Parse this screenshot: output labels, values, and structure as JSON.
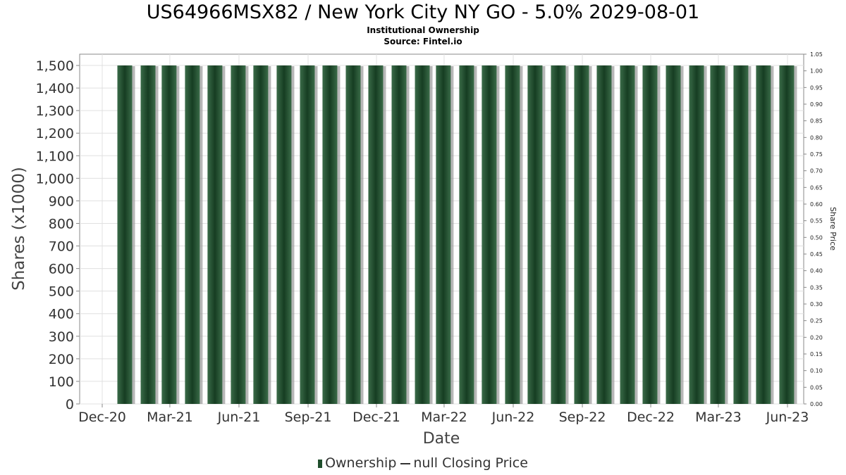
{
  "chart_data": {
    "type": "bar",
    "title": "US64966MSX82 / New York City NY GO - 5.0% 2029-08-01",
    "subtitle": "Institutional Ownership",
    "source": "Source: Fintel.io",
    "xlabel": "Date",
    "ylabel": "Shares (x1000)",
    "y2label": "Share Price",
    "ylim": [
      0,
      1550
    ],
    "y2lim": [
      0,
      1.05
    ],
    "grid": true,
    "legend_placement": "bottom",
    "x_tick_labels": [
      "Dec-20",
      "Mar-21",
      "Jun-21",
      "Sep-21",
      "Dec-21",
      "Mar-22",
      "Jun-22",
      "Sep-22",
      "Dec-22",
      "Mar-23",
      "Jun-23"
    ],
    "y_tick_labels": [
      "0",
      "100",
      "200",
      "300",
      "400",
      "500",
      "600",
      "700",
      "800",
      "900",
      "1,000",
      "1,100",
      "1,200",
      "1,300",
      "1,400",
      "1,500"
    ],
    "y2_tick_labels": [
      "0.00",
      "0.05",
      "0.10",
      "0.15",
      "0.20",
      "0.25",
      "0.30",
      "0.35",
      "0.40",
      "0.45",
      "0.50",
      "0.55",
      "0.60",
      "0.65",
      "0.70",
      "0.75",
      "0.80",
      "0.85",
      "0.90",
      "0.95",
      "1.00",
      "1.05"
    ],
    "x": [
      "2020-12-31",
      "2021-01-31",
      "2021-02-28",
      "2021-03-31",
      "2021-04-30",
      "2021-05-31",
      "2021-06-30",
      "2021-07-31",
      "2021-08-31",
      "2021-09-30",
      "2021-10-31",
      "2021-11-30",
      "2021-12-31",
      "2022-01-31",
      "2022-02-28",
      "2022-03-31",
      "2022-04-30",
      "2022-05-31",
      "2022-06-30",
      "2022-07-31",
      "2022-08-31",
      "2022-09-30",
      "2022-10-31",
      "2022-11-30",
      "2022-12-31",
      "2023-01-31",
      "2023-02-28",
      "2023-03-31",
      "2023-04-30",
      "2023-05-31"
    ],
    "series": [
      {
        "name": "Ownership",
        "values": [
          1500,
          1500,
          1500,
          1500,
          1500,
          1500,
          1500,
          1500,
          1500,
          1500,
          1500,
          1500,
          1500,
          1500,
          1500,
          1500,
          1500,
          1500,
          1500,
          1500,
          1500,
          1500,
          1500,
          1500,
          1500,
          1500,
          1500,
          1500,
          1500,
          1500
        ]
      }
    ],
    "legend": [
      "Ownership",
      "null Closing Price"
    ]
  },
  "colors": {
    "bar": "#1f4e2c",
    "bar_highlight": "#3a6b48",
    "grid": "#e0e0e0",
    "axis": "#888888",
    "shadow": "#999999"
  }
}
